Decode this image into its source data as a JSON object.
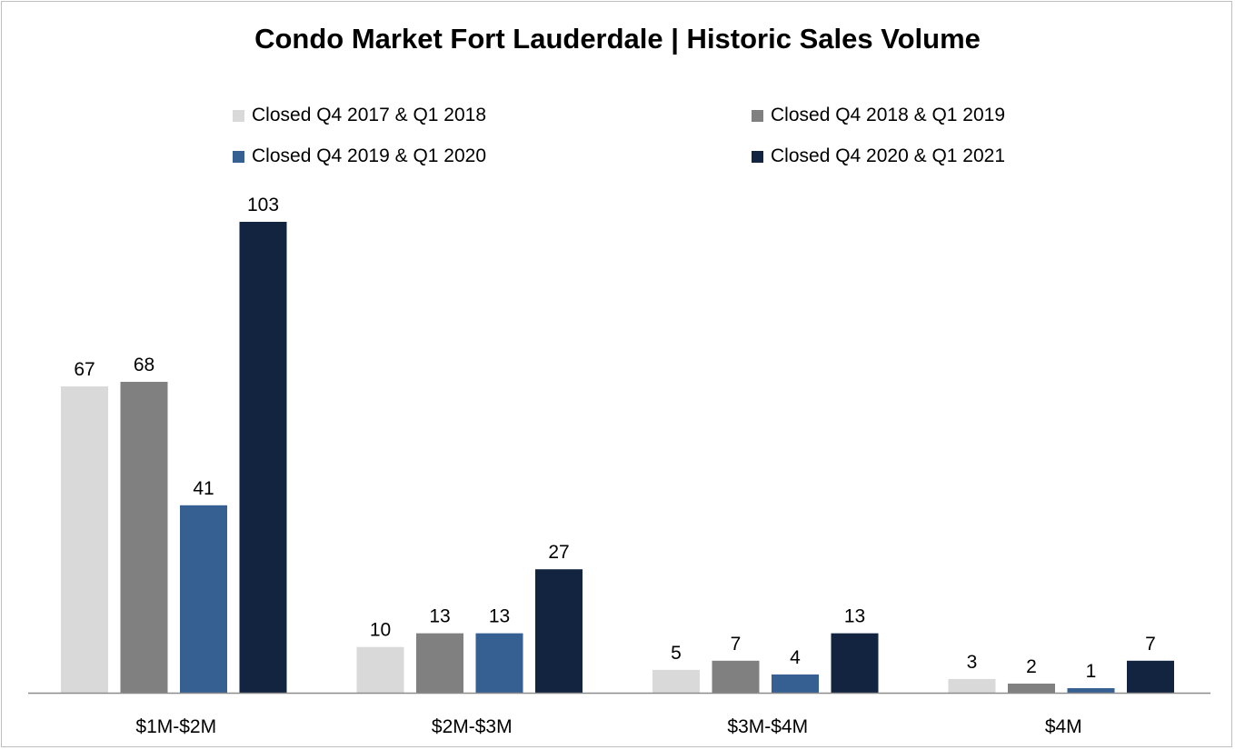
{
  "chart_data": {
    "type": "bar",
    "title": "Condo Market Fort Lauderdale | Historic Sales Volume",
    "categories": [
      "$1M-$2M",
      "$2M-$3M",
      "$3M-$4M",
      "$4M"
    ],
    "series": [
      {
        "name": "Closed Q4 2017 & Q1 2018",
        "color": "#d9d9d9",
        "values": [
          67,
          10,
          5,
          3
        ]
      },
      {
        "name": "Closed Q4 2018 & Q1 2019",
        "color": "#808080",
        "values": [
          68,
          13,
          7,
          2
        ]
      },
      {
        "name": "Closed Q4 2019 & Q1 2020",
        "color": "#376092",
        "values": [
          41,
          13,
          4,
          1
        ]
      },
      {
        "name": "Closed Q4 2020 & Q1 2021",
        "color": "#12243f",
        "values": [
          103,
          27,
          13,
          7
        ]
      }
    ],
    "ylim": [
      0,
      110
    ],
    "grid": false,
    "legend": "top",
    "data_labels": true
  }
}
